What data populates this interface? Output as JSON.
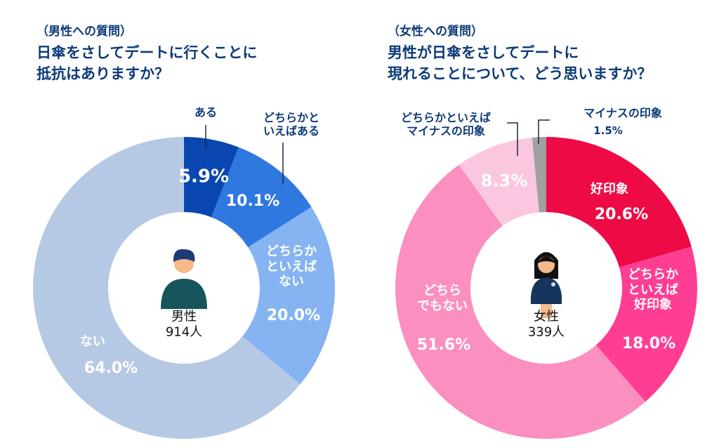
{
  "chart_data": [
    {
      "type": "pie",
      "subtitle": "（男性への質問）",
      "title": "日傘をさしてデートに行くことに\n抵抗はありますか？",
      "center_label": "男性\n914人",
      "categories": [
        "ある",
        "どちらかと\nいえばある",
        "どちらか\nといえば\nない",
        "ない"
      ],
      "values": [
        5.9,
        10.1,
        20.0,
        64.0
      ],
      "value_labels": [
        "5.9%",
        "10.1%",
        "20.0%",
        "64.0%"
      ],
      "colors": [
        "#0a47b0",
        "#2f78e0",
        "#86b4f2",
        "#b6c9e4"
      ]
    },
    {
      "type": "pie",
      "subtitle": "（女性への質問）",
      "title": "男性が日傘をさしてデートに\n現れることについて、どう思いますか？",
      "center_label": "女性\n339人",
      "categories": [
        "好印象",
        "どちらか\nといえば\n好印象",
        "どちら\nでもない",
        "どちらかといえば\nマイナスの印象",
        "マイナスの印象"
      ],
      "values": [
        20.6,
        18.0,
        51.6,
        8.3,
        1.5
      ],
      "value_labels": [
        "20.6%",
        "18.0%",
        "51.6%",
        "8.3%",
        "1.5%"
      ],
      "colors": [
        "#ee0a45",
        "#ff3e93",
        "#fb8fc0",
        "#fbc6df",
        "#a0a0a0"
      ]
    }
  ]
}
